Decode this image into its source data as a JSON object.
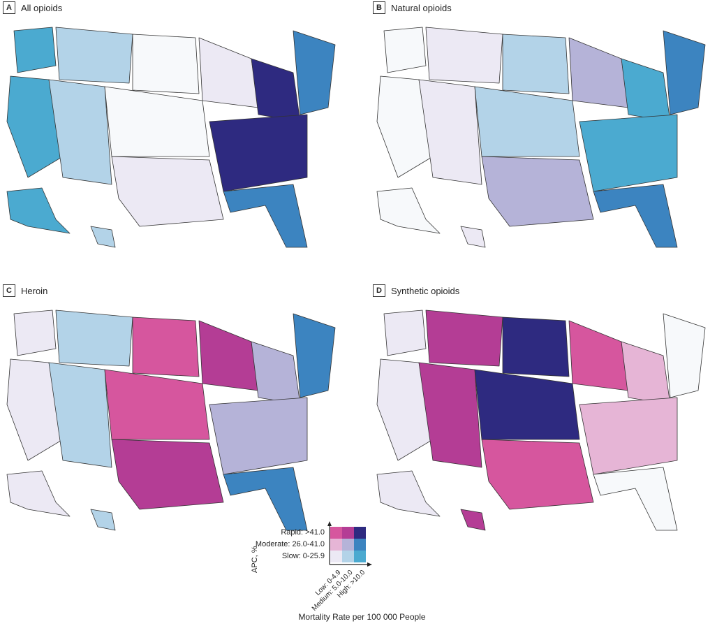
{
  "colors": {
    "slow_low": "#ece9f4",
    "slow_medium": "#b3d3e8",
    "slow_high": "#4baad0",
    "mod_low": "#e6b5d6",
    "mod_medium": "#b5b3d8",
    "mod_high": "#3c84c0",
    "rapid_low": "#d6569e",
    "rapid_medium": "#b43d95",
    "rapid_high": "#2e2a80",
    "none": "#f7f9fb"
  },
  "panels": [
    {
      "letter": "A",
      "title": "All opioids",
      "palette": [
        "slow_high",
        "slow_medium",
        "none",
        "slow_low",
        "rapid_high",
        "mod_high"
      ]
    },
    {
      "letter": "B",
      "title": "Natural opioids",
      "palette": [
        "none",
        "slow_low",
        "slow_medium",
        "mod_medium",
        "slow_high",
        "mod_high"
      ]
    },
    {
      "letter": "C",
      "title": "Heroin",
      "palette": [
        "slow_low",
        "slow_medium",
        "rapid_low",
        "rapid_medium",
        "mod_medium",
        "mod_high"
      ]
    },
    {
      "letter": "D",
      "title": "Synthetic opioids",
      "palette": [
        "slow_low",
        "rapid_medium",
        "rapid_high",
        "rapid_low",
        "mod_low",
        "none"
      ]
    }
  ],
  "legend": {
    "ylabel": "APC, %",
    "rows": [
      "Rapid: >41.0",
      "Moderate: 26.0-41.0",
      "Slow: 0-25.9"
    ],
    "cols": [
      "Low: 0-4.9",
      "Medium: 5.0-10.0",
      "High: >10.0"
    ],
    "xlabel": "Mortality Rate per 100 000 People"
  }
}
